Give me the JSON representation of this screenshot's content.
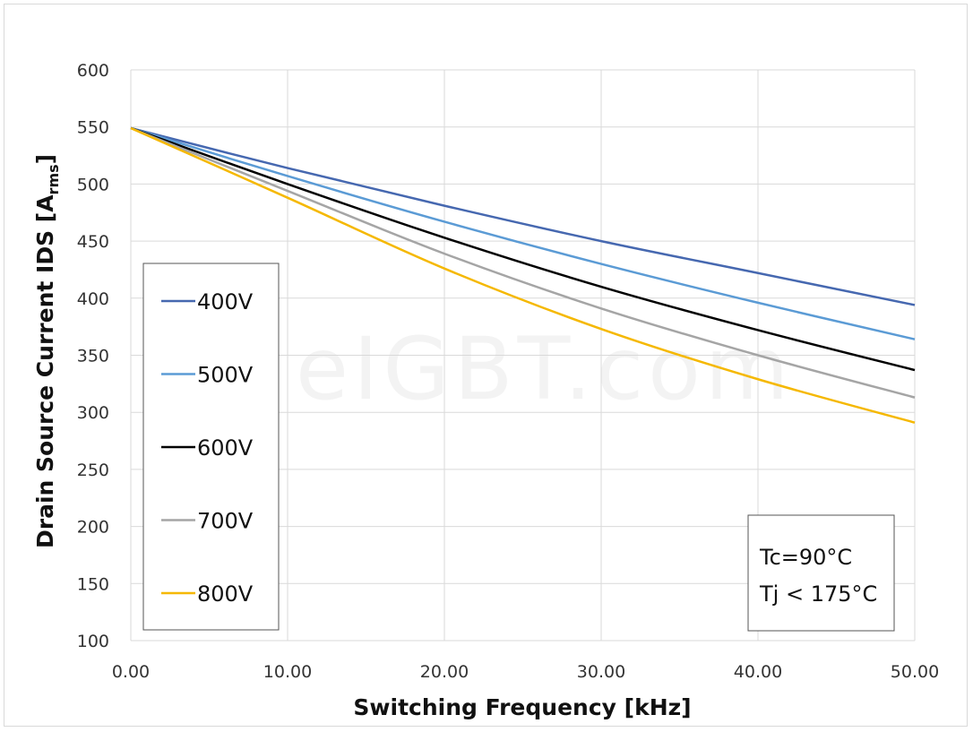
{
  "chart_data": {
    "type": "line",
    "title": "",
    "xlabel": "Switching Frequency [kHz]",
    "ylabel": "Drain Source Current IDS [A",
    "ylabel_subscript": "rms",
    "ylabel_close": "]",
    "xlim": [
      0,
      50
    ],
    "ylim": [
      100,
      600
    ],
    "xticks": [
      "0.00",
      "10.00",
      "20.00",
      "30.00",
      "40.00",
      "50.00"
    ],
    "yticks": [
      "100",
      "150",
      "200",
      "250",
      "300",
      "350",
      "400",
      "450",
      "500",
      "550",
      "600"
    ],
    "grid": true,
    "legend_placement": "left",
    "x": [
      0,
      10,
      20,
      30,
      40,
      50
    ],
    "series": [
      {
        "name": "400V",
        "color": "#4668b0",
        "values": [
          549,
          514,
          481,
          450,
          422,
          394
        ]
      },
      {
        "name": "500V",
        "color": "#5b9bd5",
        "values": [
          549,
          507,
          467,
          430,
          396,
          364
        ]
      },
      {
        "name": "600V",
        "color": "#000000",
        "values": [
          549,
          500,
          453,
          410,
          372,
          337
        ]
      },
      {
        "name": "700V",
        "color": "#a5a5a5",
        "values": [
          549,
          494,
          439,
          391,
          350,
          313
        ]
      },
      {
        "name": "800V",
        "color": "#f5b800",
        "values": [
          549,
          488,
          426,
          373,
          329,
          291
        ]
      }
    ],
    "annotation": [
      "Tc=90°C",
      "Tj < 175°C"
    ]
  },
  "watermark": "eIGBT.com"
}
